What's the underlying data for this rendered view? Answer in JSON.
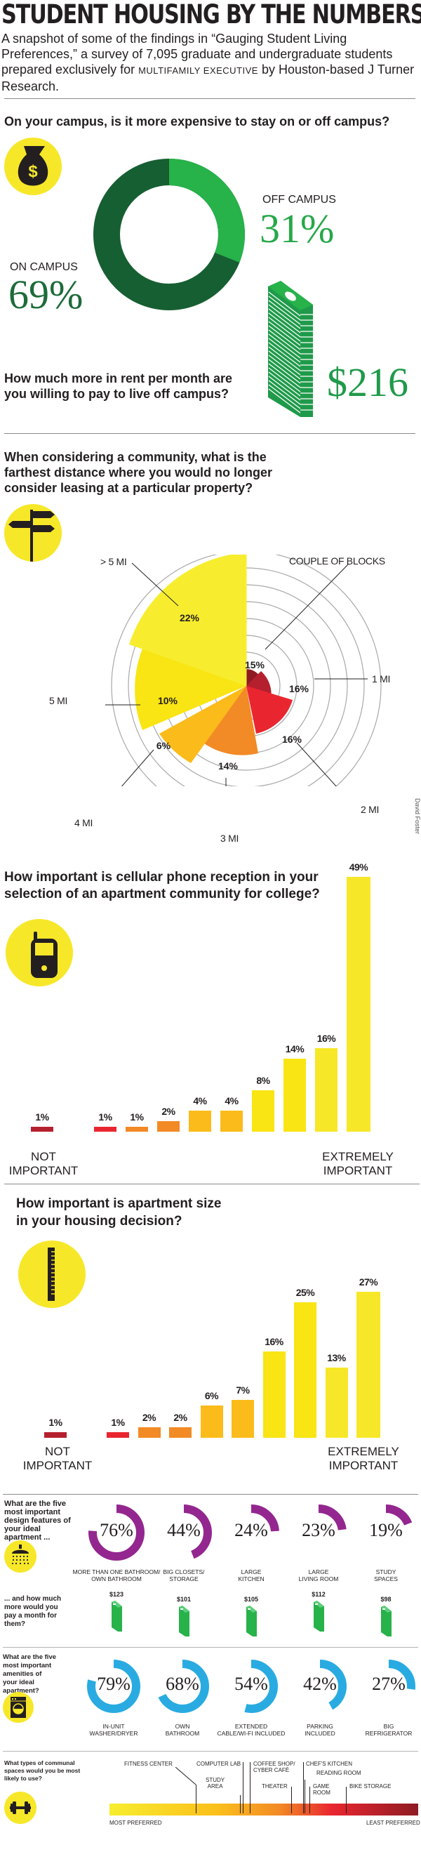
{
  "header": {
    "title": "STUDENT HOUSING BY THE NUMBERS",
    "intro_pre": "A snapshot of some of the findings in “Gauging Student Living Preferences,” a survey of 7,095 graduate and undergraduate students prepared exclusively for ",
    "intro_publication": "MULTIFAMILY EXECUTIVE",
    "intro_post": " by Houston-based J Turner Research."
  },
  "section1": {
    "question": "On your campus, is it more expensive to stay on or off campus?",
    "icon": "money-bag-icon",
    "off_label": "OFF CAMPUS",
    "off_value": "31%",
    "on_label": "ON CAMPUS",
    "on_value": "69%",
    "colors": {
      "off": "#27b24a",
      "on": "#165f32"
    },
    "rent_question": "How much more in rent per month are you willing to pay to live off campus?",
    "rent_icon": "cash-stack-icon",
    "rent_value": "$216"
  },
  "section2": {
    "question": "When considering a community, what is the farthest distance where you would no longer consider leasing at a particular property?",
    "icon": "signpost-icon",
    "labels": {
      "over5": "> 5 MI",
      "blocks": "COUPLE OF BLOCKS",
      "mi1": "1 MI",
      "mi2": "2 MI",
      "mi3": "3 MI",
      "mi4": "4 MI",
      "mi5": "5 MI"
    },
    "values": {
      "blocks": "15%",
      "mi1": "16%",
      "mi2": "16%",
      "mi3": "14%",
      "mi4": "6%",
      "mi5": "10%",
      "over5": "22%"
    },
    "credit": "David Foster"
  },
  "section3": {
    "question": "How important is cellular phone reception in your selection of an apartment community for college?",
    "icon": "cell-phone-icon",
    "bars": [
      {
        "label": "1%",
        "value": 1,
        "color": "#b5202e"
      },
      {
        "label": "",
        "value": 0,
        "color": "#ffffff"
      },
      {
        "label": "1%",
        "value": 1,
        "color": "#e92630"
      },
      {
        "label": "1%",
        "value": 1,
        "color": "#f28a25"
      },
      {
        "label": "2%",
        "value": 2,
        "color": "#f28a25"
      },
      {
        "label": "4%",
        "value": 4,
        "color": "#fbbb1b"
      },
      {
        "label": "4%",
        "value": 4,
        "color": "#fbbb1b"
      },
      {
        "label": "8%",
        "value": 8,
        "color": "#f9e414"
      },
      {
        "label": "14%",
        "value": 14,
        "color": "#f9e414"
      },
      {
        "label": "16%",
        "value": 16,
        "color": "#f7e729"
      },
      {
        "label": "49%",
        "value": 49,
        "color": "#f7e729"
      }
    ],
    "low_label_1": "NOT",
    "low_label_2": "IMPORTANT",
    "high_label_1": "EXTREMELY",
    "high_label_2": "IMPORTANT"
  },
  "section4": {
    "question_line1": "How important is apartment size",
    "question_line2": "in your housing decision?",
    "icon": "ruler-icon",
    "bars": [
      {
        "label": "1%",
        "value": 1,
        "color": "#b5202e"
      },
      {
        "label": "",
        "value": 0,
        "color": "#ffffff"
      },
      {
        "label": "1%",
        "value": 1,
        "color": "#e92630"
      },
      {
        "label": "2%",
        "value": 2,
        "color": "#f28a25"
      },
      {
        "label": "2%",
        "value": 2,
        "color": "#f28a25"
      },
      {
        "label": "6%",
        "value": 6,
        "color": "#fbbb1b"
      },
      {
        "label": "7%",
        "value": 7,
        "color": "#fbbb1b"
      },
      {
        "label": "16%",
        "value": 16,
        "color": "#f9e414"
      },
      {
        "label": "25%",
        "value": 25,
        "color": "#f9e414"
      },
      {
        "label": "13%",
        "value": 13,
        "color": "#f7e729"
      },
      {
        "label": "27%",
        "value": 27,
        "color": "#f7e729"
      }
    ],
    "low_label_1": "NOT",
    "low_label_2": "IMPORTANT",
    "high_label_1": "EXTREMELY",
    "high_label_2": "IMPORTANT"
  },
  "section5": {
    "question": "What are the five most important design features of your ideal apartment ...",
    "icon": "shower-icon",
    "color": "#93278f",
    "items": [
      {
        "pct": "76%",
        "value": 76,
        "label1": "MORE THAN ONE BATHROOM/",
        "label2": "OWN BATHROOM",
        "price": "$123"
      },
      {
        "pct": "44%",
        "value": 44,
        "label1": "BIG CLOSETS/",
        "label2": "STORAGE",
        "price": "$101"
      },
      {
        "pct": "24%",
        "value": 24,
        "label1": "LARGE",
        "label2": "KITCHEN",
        "price": "$105"
      },
      {
        "pct": "23%",
        "value": 23,
        "label1": "LARGE",
        "label2": "LIVING ROOM",
        "price": "$112"
      },
      {
        "pct": "19%",
        "value": 19,
        "label1": "STUDY",
        "label2": "SPACES",
        "price": "$98"
      }
    ],
    "price_question": "... and how much more would you pay a month for them?"
  },
  "section6": {
    "question": "What are the five most important amenities of your ideal apartment?",
    "icon": "washing-machine-icon",
    "color": "#29abe2",
    "items": [
      {
        "pct": "79%",
        "value": 79,
        "label1": "IN-UNIT",
        "label2": "WASHER/DRYER"
      },
      {
        "pct": "68%",
        "value": 68,
        "label1": "OWN",
        "label2": "BATHROOM"
      },
      {
        "pct": "54%",
        "value": 54,
        "label1": "EXTENDED",
        "label2": "CABLE/WI-FI INCLUDED"
      },
      {
        "pct": "42%",
        "value": 42,
        "label1": "PARKING",
        "label2": "INCLUDED"
      },
      {
        "pct": "27%",
        "value": 27,
        "label1": "BIG",
        "label2": "REFRIGERATOR"
      }
    ]
  },
  "section7": {
    "question": "What types of communal spaces would you be most likely to use?",
    "icon": "dumbbell-icon",
    "most": "MOST PREFERRED",
    "least": "LEAST PREFERRED",
    "spaces": {
      "fitness": "FITNESS CENTER",
      "computer": "COMPUTER LAB",
      "study1": "STUDY",
      "study2": "AREA",
      "coffee1": "COFFEE SHOP/",
      "coffee2": "CYBER CAFÉ",
      "theater": "THEATER",
      "chef": "CHEF'S KITCHEN",
      "reading": "READING ROOM",
      "game1": "GAME",
      "game2": "ROOM",
      "bike": "BIKE STORAGE"
    }
  },
  "chart_data": [
    {
      "type": "pie",
      "title": "On your campus, is it more expensive to stay on or off campus?",
      "categories": [
        "Off campus",
        "On campus"
      ],
      "values": [
        31,
        69
      ],
      "donut": true
    },
    {
      "type": "table",
      "title": "How much more in rent per month are you willing to pay to live off campus?",
      "values": [
        216
      ],
      "unit": "$"
    },
    {
      "type": "pie",
      "subtype": "polar-area",
      "title": "Farthest distance where you would no longer consider leasing",
      "categories": [
        "Couple of blocks",
        "1 mi",
        "2 mi",
        "3 mi",
        "4 mi",
        "5 mi",
        "> 5 mi"
      ],
      "values": [
        15,
        16,
        16,
        14,
        6,
        10,
        22
      ]
    },
    {
      "type": "bar",
      "title": "How important is cellular phone reception in your selection of an apartment community for college?",
      "categories": [
        "0 (Not important)",
        "1",
        "2",
        "3",
        "4",
        "5",
        "6",
        "7",
        "8",
        "9",
        "10 (Extremely important)"
      ],
      "values": [
        1,
        0,
        1,
        1,
        2,
        4,
        4,
        8,
        14,
        16,
        49
      ],
      "xlabel": "Not important → Extremely important",
      "ylabel": "%"
    },
    {
      "type": "bar",
      "title": "How important is apartment size in your housing decision?",
      "categories": [
        "0 (Not important)",
        "1",
        "2",
        "3",
        "4",
        "5",
        "6",
        "7",
        "8",
        "9",
        "10 (Extremely important)"
      ],
      "values": [
        1,
        0,
        1,
        2,
        2,
        6,
        7,
        16,
        25,
        13,
        27
      ],
      "xlabel": "Not important → Extremely important",
      "ylabel": "%"
    },
    {
      "type": "bar",
      "title": "Five most important design features (% and extra monthly rent)",
      "categories": [
        "More than one bathroom/own bathroom",
        "Big closets/storage",
        "Large kitchen",
        "Large living room",
        "Study spaces"
      ],
      "series": [
        {
          "name": "Percent",
          "values": [
            76,
            44,
            24,
            23,
            19
          ]
        },
        {
          "name": "Extra $ per month",
          "values": [
            123,
            101,
            105,
            112,
            98
          ]
        }
      ]
    },
    {
      "type": "bar",
      "title": "Five most important amenities",
      "categories": [
        "In-unit washer/dryer",
        "Own bathroom",
        "Extended cable/Wi-Fi included",
        "Parking included",
        "Big refrigerator"
      ],
      "values": [
        79,
        68,
        54,
        42,
        27
      ]
    },
    {
      "type": "table",
      "title": "What types of communal spaces would you be most likely to use?",
      "categories": [
        "Fitness center",
        "Study area",
        "Computer lab",
        "Coffee shop/cyber café",
        "Theater",
        "Chef's kitchen",
        "Reading room",
        "Game room",
        "Bike storage"
      ],
      "scale": "Most preferred → Least preferred"
    }
  ]
}
